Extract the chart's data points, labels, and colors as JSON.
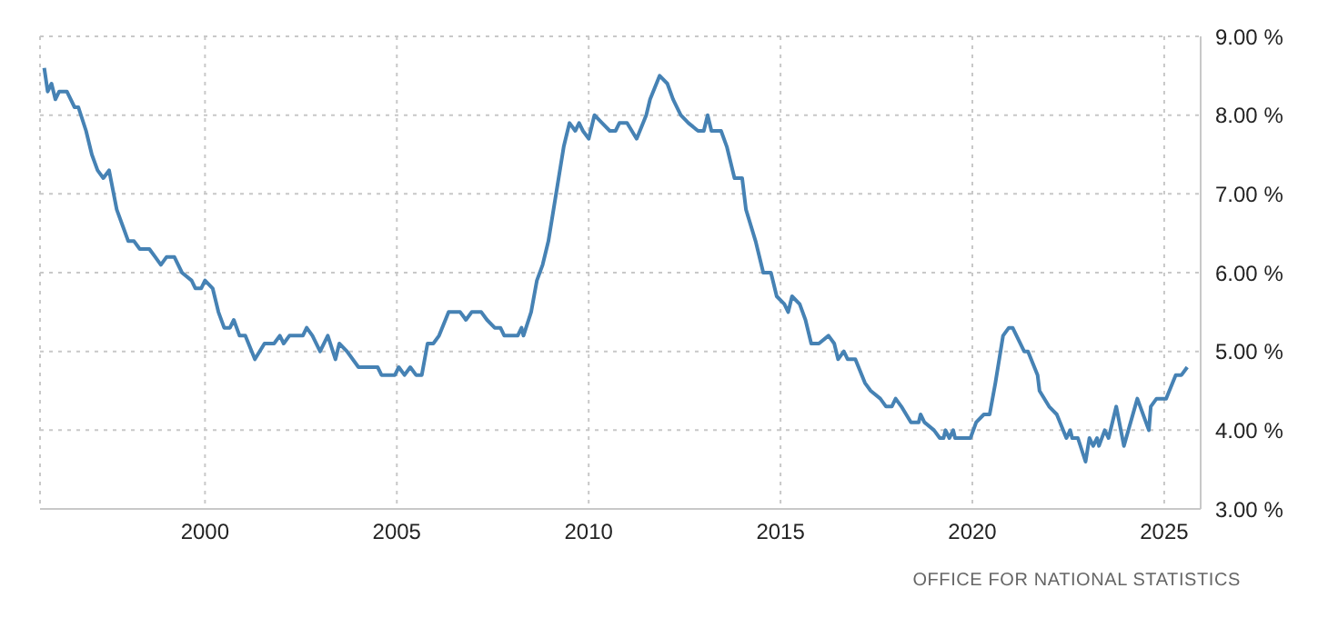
{
  "chart_data": {
    "type": "line",
    "color": "#4682b4",
    "x": [
      1995.81,
      1995.9,
      1996.0,
      1996.1,
      1996.2,
      1996.4,
      1996.6,
      1996.7,
      1996.9,
      1997.05,
      1997.2,
      1997.35,
      1997.5,
      1997.7,
      1997.85,
      1998.0,
      1998.15,
      1998.3,
      1998.55,
      1998.7,
      1998.85,
      1999.0,
      1999.2,
      1999.4,
      1999.65,
      1999.75,
      1999.9,
      2000.0,
      2000.2,
      2000.35,
      2000.5,
      2000.65,
      2000.75,
      2000.9,
      2001.05,
      2001.3,
      2001.55,
      2001.8,
      2001.95,
      2002.05,
      2002.2,
      2002.55,
      2002.65,
      2002.8,
      2003.0,
      2003.2,
      2003.4,
      2003.5,
      2003.7,
      2004.0,
      2004.5,
      2004.6,
      2004.95,
      2005.05,
      2005.2,
      2005.35,
      2005.5,
      2005.65,
      2005.8,
      2005.95,
      2006.1,
      2006.35,
      2006.65,
      2006.8,
      2006.95,
      2007.2,
      2007.35,
      2007.55,
      2007.7,
      2007.8,
      2008.15,
      2008.25,
      2008.3,
      2008.5,
      2008.65,
      2008.8,
      2008.95,
      2009.15,
      2009.35,
      2009.5,
      2009.65,
      2009.75,
      2009.85,
      2010.0,
      2010.15,
      2010.35,
      2010.55,
      2010.7,
      2010.8,
      2011.0,
      2011.25,
      2011.5,
      2011.6,
      2011.85,
      2012.05,
      2012.2,
      2012.4,
      2012.6,
      2012.85,
      2013.0,
      2013.1,
      2013.2,
      2013.45,
      2013.6,
      2013.8,
      2014.0,
      2014.1,
      2014.35,
      2014.55,
      2014.75,
      2014.9,
      2015.1,
      2015.2,
      2015.3,
      2015.5,
      2015.65,
      2015.8,
      2016.0,
      2016.25,
      2016.4,
      2016.5,
      2016.65,
      2016.75,
      2016.95,
      2017.2,
      2017.35,
      2017.6,
      2017.75,
      2017.9,
      2018.0,
      2018.15,
      2018.4,
      2018.6,
      2018.65,
      2018.75,
      2019.0,
      2019.15,
      2019.25,
      2019.3,
      2019.4,
      2019.5,
      2019.55,
      2019.95,
      2020.1,
      2020.3,
      2020.45,
      2020.6,
      2020.8,
      2020.95,
      2021.05,
      2021.35,
      2021.45,
      2021.7,
      2021.75,
      2022.0,
      2022.2,
      2022.45,
      2022.55,
      2022.6,
      2022.75,
      2022.95,
      2023.05,
      2023.15,
      2023.25,
      2023.3,
      2023.45,
      2023.55,
      2023.75,
      2023.95,
      2024.3,
      2024.6,
      2024.65,
      2024.8,
      2025.05,
      2025.3,
      2025.45,
      2025.6
    ],
    "values": [
      8.6,
      8.3,
      8.4,
      8.2,
      8.3,
      8.3,
      8.1,
      8.1,
      7.8,
      7.5,
      7.3,
      7.2,
      7.3,
      6.8,
      6.6,
      6.4,
      6.4,
      6.3,
      6.3,
      6.2,
      6.1,
      6.2,
      6.2,
      6.0,
      5.9,
      5.8,
      5.8,
      5.9,
      5.8,
      5.5,
      5.3,
      5.3,
      5.4,
      5.2,
      5.2,
      4.9,
      5.1,
      5.1,
      5.2,
      5.1,
      5.2,
      5.2,
      5.3,
      5.2,
      5.0,
      5.2,
      4.9,
      5.1,
      5.0,
      4.8,
      4.8,
      4.7,
      4.7,
      4.8,
      4.7,
      4.8,
      4.7,
      4.7,
      5.1,
      5.1,
      5.2,
      5.5,
      5.5,
      5.4,
      5.5,
      5.5,
      5.4,
      5.3,
      5.3,
      5.2,
      5.2,
      5.3,
      5.2,
      5.5,
      5.9,
      6.1,
      6.4,
      7.0,
      7.6,
      7.9,
      7.8,
      7.9,
      7.8,
      7.7,
      8.0,
      7.9,
      7.8,
      7.8,
      7.9,
      7.9,
      7.7,
      8.0,
      8.2,
      8.5,
      8.4,
      8.2,
      8.0,
      7.9,
      7.8,
      7.8,
      8.0,
      7.8,
      7.8,
      7.6,
      7.2,
      7.2,
      6.8,
      6.4,
      6.0,
      6.0,
      5.7,
      5.6,
      5.5,
      5.7,
      5.6,
      5.4,
      5.1,
      5.1,
      5.2,
      5.1,
      4.9,
      5.0,
      4.9,
      4.9,
      4.6,
      4.5,
      4.4,
      4.3,
      4.3,
      4.4,
      4.3,
      4.1,
      4.1,
      4.2,
      4.1,
      4.0,
      3.9,
      3.9,
      4.0,
      3.9,
      4.0,
      3.9,
      3.9,
      4.1,
      4.2,
      4.2,
      4.6,
      5.2,
      5.3,
      5.3,
      5.0,
      5.0,
      4.7,
      4.5,
      4.3,
      4.2,
      3.9,
      4.0,
      3.9,
      3.9,
      3.6,
      3.9,
      3.8,
      3.9,
      3.8,
      4.0,
      3.9,
      4.3,
      3.8,
      4.4,
      4.0,
      4.3,
      4.4,
      4.4,
      4.7,
      4.7,
      4.8
    ],
    "xlim": [
      1995.7,
      2025.95
    ],
    "xticks": [
      2000,
      2005,
      2010,
      2015,
      2020,
      2025
    ],
    "ylim": [
      3,
      9
    ],
    "yticks": [
      {
        "value": 3,
        "label": "3.00 %"
      },
      {
        "value": 4,
        "label": "4.00 %"
      },
      {
        "value": 5,
        "label": "5.00 %"
      },
      {
        "value": 6,
        "label": "6.00 %"
      },
      {
        "value": 7,
        "label": "7.00 %"
      },
      {
        "value": 8,
        "label": "8.00 %"
      },
      {
        "value": 9,
        "label": "9.00 %"
      }
    ],
    "grid": true,
    "annotations": [
      "OFFICE FOR NATIONAL STATISTICS"
    ]
  }
}
